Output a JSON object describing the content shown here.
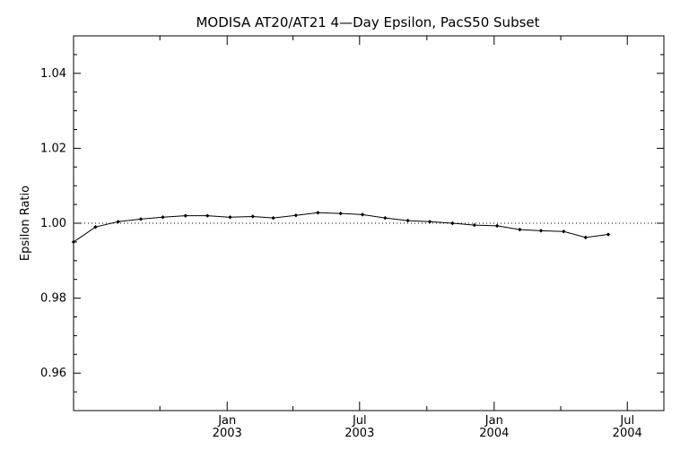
{
  "chart_data": {
    "type": "line",
    "title": "MODISA AT20/AT21 4—Day Epsilon, PacS50 Subset",
    "xlabel": "",
    "ylabel": "Epsilon Ratio",
    "ylim": [
      0.95,
      1.05
    ],
    "xlim": [
      "2002-06-05",
      "2004-08-20"
    ],
    "y_ticks": [
      0.96,
      0.98,
      1.0,
      1.02,
      1.04
    ],
    "y_tick_labels": [
      "0.96",
      "0.98",
      "1.00",
      "1.02",
      "1.04"
    ],
    "x_ticks": [
      {
        "date": "2003-01-01",
        "month": "Jan",
        "year": "2003"
      },
      {
        "date": "2003-07-01",
        "month": "Jul",
        "year": "2003"
      },
      {
        "date": "2004-01-01",
        "month": "Jan",
        "year": "2004"
      },
      {
        "date": "2004-07-01",
        "month": "Jul",
        "year": "2004"
      }
    ],
    "x_minor_ticks": [
      "2002-10-01",
      "2003-04-01",
      "2003-10-01",
      "2004-04-01"
    ],
    "reference_line": {
      "y": 1.0,
      "style": "dotted"
    },
    "grid": false,
    "series": [
      {
        "marker": "diamond",
        "points": [
          {
            "x": "2002-06-05",
            "y": 0.995
          },
          {
            "x": "2002-07-05",
            "y": 0.999
          },
          {
            "x": "2002-08-05",
            "y": 1.0004
          },
          {
            "x": "2002-09-05",
            "y": 1.0011
          },
          {
            "x": "2002-10-05",
            "y": 1.0016
          },
          {
            "x": "2002-11-05",
            "y": 1.002
          },
          {
            "x": "2002-12-05",
            "y": 1.002
          },
          {
            "x": "2003-01-05",
            "y": 1.0016
          },
          {
            "x": "2003-02-05",
            "y": 1.0018
          },
          {
            "x": "2003-03-05",
            "y": 1.0014
          },
          {
            "x": "2003-04-05",
            "y": 1.0021
          },
          {
            "x": "2003-05-05",
            "y": 1.0028
          },
          {
            "x": "2003-06-05",
            "y": 1.0026
          },
          {
            "x": "2003-07-05",
            "y": 1.0023
          },
          {
            "x": "2003-08-05",
            "y": 1.0014
          },
          {
            "x": "2003-09-05",
            "y": 1.0007
          },
          {
            "x": "2003-10-05",
            "y": 1.0004
          },
          {
            "x": "2003-11-05",
            "y": 1.0
          },
          {
            "x": "2003-12-05",
            "y": 0.9995
          },
          {
            "x": "2004-01-05",
            "y": 0.9993
          },
          {
            "x": "2004-02-05",
            "y": 0.9983
          },
          {
            "x": "2004-03-05",
            "y": 0.998
          },
          {
            "x": "2004-04-05",
            "y": 0.9978
          },
          {
            "x": "2004-05-05",
            "y": 0.9962
          },
          {
            "x": "2004-06-05",
            "y": 0.997
          }
        ]
      }
    ]
  }
}
